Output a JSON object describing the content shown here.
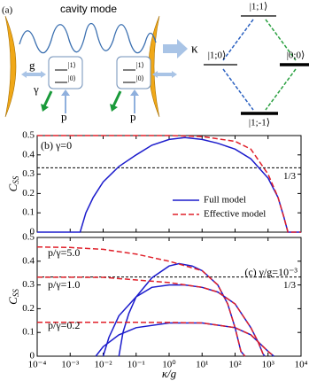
{
  "diagram": {
    "label": "(a)",
    "mode_label": "cavity mode",
    "kappa": "κ",
    "coupling": "g",
    "decay": "γ",
    "pump": [
      "p",
      "p"
    ],
    "atom_levels": [
      [
        "|1⟩",
        "|0⟩"
      ],
      [
        "|1⟩",
        "|0⟩"
      ]
    ],
    "states": [
      "|1;1⟩",
      "|1;0⟩",
      "|0;0⟩",
      "|1;-1⟩"
    ]
  },
  "chart_data": [
    {
      "type": "line",
      "y_label": "C",
      "y_label_sub": "SS",
      "xscale": "log",
      "xlim": [
        0.0001,
        10000
      ],
      "ylim": [
        0,
        0.5
      ],
      "yticks": [
        0,
        0.1,
        0.2,
        0.3,
        0.4,
        0.5
      ],
      "annotations": [
        "(b) γ=0"
      ],
      "reference_line": {
        "value": 0.3333,
        "label": "1/3"
      },
      "legend": "lower right",
      "series": [
        {
          "name": "Full model",
          "color": "#1c1ccc",
          "line_style": "solid",
          "x": [
            0.0001,
            0.001,
            0.002,
            0.003,
            0.005,
            0.01,
            0.03,
            0.1,
            0.3,
            1,
            3,
            10,
            30,
            100,
            300,
            1000,
            2000,
            3000,
            4000,
            10000
          ],
          "values": [
            0,
            0,
            0,
            0.1,
            0.18,
            0.26,
            0.34,
            0.4,
            0.45,
            0.48,
            0.49,
            0.48,
            0.46,
            0.43,
            0.38,
            0.28,
            0.18,
            0.08,
            0,
            0
          ]
        },
        {
          "name": "Effective model",
          "color": "#e0202a",
          "line_style": "dashed",
          "x": [
            0.0001,
            0.001,
            0.01,
            0.1,
            1,
            10,
            100,
            300,
            1000,
            2000,
            3000,
            4000,
            10000
          ],
          "values": [
            0.5,
            0.5,
            0.5,
            0.5,
            0.5,
            0.495,
            0.47,
            0.43,
            0.3,
            0.18,
            0.08,
            0,
            0
          ]
        }
      ]
    },
    {
      "type": "line",
      "y_label": "C",
      "y_label_sub": "SS",
      "x_label": "κ/g",
      "xscale": "log",
      "xlim": [
        0.0001,
        10000
      ],
      "ylim": [
        0,
        0.5
      ],
      "yticks": [
        0,
        0.1,
        0.2,
        0.3,
        0.4,
        0.5
      ],
      "xticks": [
        {
          "value": 0.0001,
          "label": "10⁻⁴"
        },
        {
          "value": 0.001,
          "label": "10⁻³"
        },
        {
          "value": 0.01,
          "label": "10⁻²"
        },
        {
          "value": 0.1,
          "label": "10⁻¹"
        },
        {
          "value": 1,
          "label": "10⁰"
        },
        {
          "value": 10,
          "label": "10¹"
        },
        {
          "value": 100,
          "label": "10²"
        },
        {
          "value": 1000,
          "label": "10³"
        },
        {
          "value": 10000,
          "label": "10⁴"
        }
      ],
      "annotations": [
        "(c)  γ/g=10⁻³",
        "p/γ=5.0",
        "p/γ=1.0",
        "p/γ=0.2"
      ],
      "reference_line": {
        "value": 0.3333,
        "label": "1/3"
      },
      "series": [
        {
          "color": "#1c1ccc",
          "line_style": "solid",
          "x": [
            0.03,
            0.04,
            0.06,
            0.1,
            0.3,
            1,
            2,
            5,
            10,
            30,
            60,
            100,
            150,
            200
          ],
          "values": [
            0,
            0.1,
            0.18,
            0.25,
            0.33,
            0.38,
            0.39,
            0.38,
            0.36,
            0.3,
            0.22,
            0.12,
            0.02,
            0
          ]
        },
        {
          "color": "#e0202a",
          "line_style": "dashed",
          "x": [
            0.0001,
            0.001,
            0.01,
            0.1,
            1,
            10,
            30,
            60,
            100,
            150,
            200
          ],
          "values": [
            0.46,
            0.458,
            0.45,
            0.43,
            0.4,
            0.36,
            0.3,
            0.22,
            0.12,
            0.02,
            0
          ]
        },
        {
          "color": "#1c1ccc",
          "line_style": "solid",
          "x": [
            0.01,
            0.015,
            0.03,
            0.1,
            0.3,
            1,
            3,
            10,
            30,
            100,
            300,
            500,
            700,
            800
          ],
          "values": [
            0,
            0.08,
            0.17,
            0.25,
            0.29,
            0.3,
            0.3,
            0.29,
            0.27,
            0.22,
            0.12,
            0.06,
            0.01,
            0
          ]
        },
        {
          "color": "#e0202a",
          "line_style": "dashed",
          "x": [
            0.0001,
            0.01,
            1,
            10,
            30,
            100,
            300,
            500,
            700,
            800
          ],
          "values": [
            0.333,
            0.332,
            0.31,
            0.29,
            0.27,
            0.22,
            0.12,
            0.06,
            0.01,
            0
          ]
        },
        {
          "color": "#1c1ccc",
          "line_style": "solid",
          "x": [
            0.006,
            0.01,
            0.03,
            0.1,
            1,
            10,
            100,
            300,
            1000,
            1500
          ],
          "values": [
            0,
            0.04,
            0.09,
            0.12,
            0.14,
            0.14,
            0.12,
            0.09,
            0.02,
            0
          ]
        },
        {
          "color": "#e0202a",
          "line_style": "dashed",
          "x": [
            0.0001,
            0.01,
            1,
            10,
            100,
            300,
            1000,
            1500
          ],
          "values": [
            0.143,
            0.143,
            0.142,
            0.14,
            0.12,
            0.09,
            0.02,
            0
          ]
        }
      ]
    }
  ]
}
